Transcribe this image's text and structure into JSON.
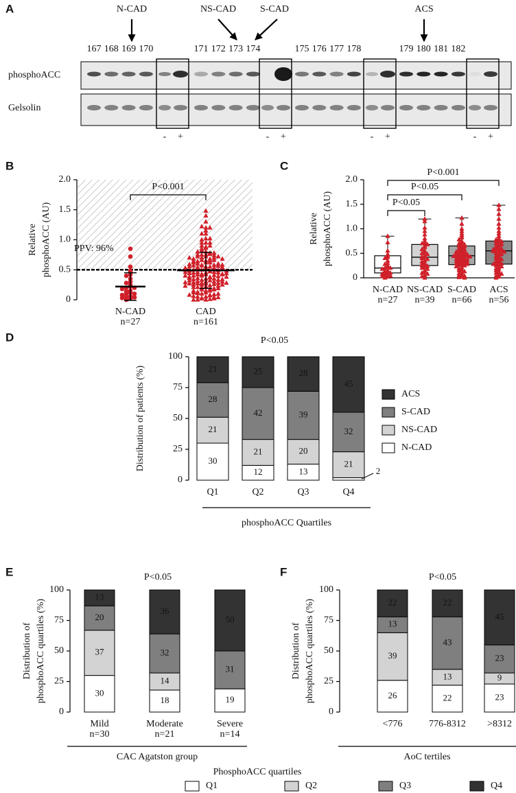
{
  "blot": {
    "panel": "A",
    "arrows": [
      "N-CAD",
      "NS-CAD",
      "S-CAD",
      "ACS"
    ],
    "lanes": [
      "167",
      "168",
      "169",
      "170",
      "171",
      "172",
      "173",
      "174",
      "175",
      "176",
      "177",
      "178",
      "179",
      "180",
      "181",
      "182"
    ],
    "rows": [
      "phosphoACC",
      "Gelsolin"
    ],
    "controls": [
      "-",
      "+",
      "-",
      "+",
      "-",
      "+",
      "-",
      "+"
    ]
  },
  "chart_data": [
    {
      "type": "dotplot",
      "panel": "B",
      "y_label": [
        "Relative",
        "phosphoACC (AU)"
      ],
      "categories": [
        "N-CAD",
        "CAD"
      ],
      "n_labels": [
        "n=27",
        "n=161"
      ],
      "markers": [
        "circle",
        "triangle"
      ],
      "color": "#d0202a",
      "values": [
        [
          0.85,
          0.72,
          0.55,
          0.48,
          0.45,
          0.42,
          0.4,
          0.35,
          0.3,
          0.28,
          0.25,
          0.22,
          0.2,
          0.2,
          0.18,
          0.15,
          0.14,
          0.12,
          0.1,
          0.1,
          0.08,
          0.06,
          0.05,
          0.04,
          0.03,
          0.02,
          0.0
        ],
        [
          1.2,
          1.15,
          1.02,
          0.95,
          0.88,
          0.8,
          0.75,
          0.72,
          0.7,
          0.68,
          0.65,
          0.62,
          0.58,
          0.55,
          0.52,
          0.5,
          0.48,
          0.45,
          0.43,
          0.42,
          0.4,
          0.38,
          0.35,
          0.33,
          0.3,
          0.28,
          0.27,
          0.25,
          0.24,
          0.22,
          0.2,
          0.18,
          0.15,
          0.12,
          0.1,
          0.08,
          0.05,
          0.03,
          0.0,
          1.22,
          1.1,
          1.0,
          0.95,
          0.9,
          0.86,
          0.82,
          0.78,
          0.75,
          0.72,
          0.7,
          0.68,
          0.66,
          0.65,
          0.64,
          0.62,
          0.6,
          0.58,
          0.57,
          0.55,
          0.54,
          0.53,
          0.52,
          0.51,
          0.5,
          0.49,
          0.48,
          0.47,
          0.46,
          0.46,
          0.45,
          0.45,
          0.44,
          0.43,
          0.42,
          0.41,
          0.4,
          0.39,
          0.38,
          0.37,
          0.36,
          0.35,
          0.34,
          0.33,
          0.32,
          0.31,
          0.3,
          0.29,
          0.28,
          0.27,
          0.26,
          0.25,
          0.23,
          0.21,
          0.19,
          0.17,
          0.15,
          0.13,
          0.11,
          0.09,
          0.07,
          0.05,
          0.04,
          0.02,
          0.01,
          0.0,
          1.48,
          1.4,
          1.3,
          1.2,
          1.1,
          1.02,
          0.95,
          0.9,
          0.85,
          0.8,
          0.78,
          0.76,
          0.75,
          0.74,
          0.72,
          0.7,
          0.68,
          0.66,
          0.64,
          0.62,
          0.6,
          0.59,
          0.58,
          0.57,
          0.56,
          0.55,
          0.54,
          0.53,
          0.52,
          0.5,
          0.48,
          0.46,
          0.44,
          0.42,
          0.4,
          0.38,
          0.36,
          0.34,
          0.32,
          0.3,
          0.29,
          0.28,
          0.27,
          0.25,
          0.23,
          0.21,
          0.19,
          0.17,
          0.15,
          0.12,
          0.1,
          0.08,
          0.06,
          0.04,
          0.02,
          0.0
        ]
      ],
      "means": [
        0.22,
        0.49
      ],
      "errors": [
        0.23,
        0.3
      ],
      "threshold": 0.5,
      "annotations": [
        "P<0.001"
      ],
      "ppv_label": "PPV: 96%",
      "ylim": [
        0,
        2
      ],
      "yticks": [
        0,
        0.5,
        {
          "value": 1,
          "label": "1.0"
        },
        1.5,
        {
          "value": 2,
          "label": "2.0"
        }
      ]
    },
    {
      "type": "box",
      "panel": "C",
      "y_label": [
        "Relative",
        "phosphoACC (AU)"
      ],
      "categories": [
        "N-CAD",
        "NS-CAD",
        "S-CAD",
        "ACS"
      ],
      "n_labels": [
        "n=27",
        "n=39",
        "n=66",
        "n=56"
      ],
      "min": [
        0,
        0,
        0,
        0
      ],
      "q1": [
        0.1,
        0.25,
        0.27,
        0.28
      ],
      "median": [
        0.2,
        0.42,
        0.45,
        0.55
      ],
      "q3": [
        0.45,
        0.68,
        0.65,
        0.75
      ],
      "max": [
        0.85,
        1.2,
        1.22,
        1.48
      ],
      "box_colors": [
        "#ffffff",
        "#d3d3d3",
        "#a8a8a8",
        "#8a8a8a"
      ],
      "point_color": "#d0202a",
      "points": [
        [
          0.85,
          0.72,
          0.55,
          0.48,
          0.45,
          0.42,
          0.4,
          0.35,
          0.3,
          0.28,
          0.25,
          0.22,
          0.2,
          0.2,
          0.18,
          0.15,
          0.14,
          0.12,
          0.1,
          0.1,
          0.08,
          0.06,
          0.05,
          0.04,
          0.03,
          0.02,
          0.0
        ],
        [
          1.2,
          1.15,
          1.02,
          0.95,
          0.88,
          0.8,
          0.75,
          0.72,
          0.7,
          0.68,
          0.65,
          0.62,
          0.58,
          0.55,
          0.52,
          0.5,
          0.48,
          0.45,
          0.43,
          0.42,
          0.4,
          0.38,
          0.35,
          0.33,
          0.3,
          0.28,
          0.27,
          0.25,
          0.24,
          0.22,
          0.2,
          0.18,
          0.15,
          0.12,
          0.1,
          0.08,
          0.05,
          0.03,
          0.0
        ],
        [
          1.22,
          1.1,
          1.0,
          0.95,
          0.9,
          0.86,
          0.82,
          0.78,
          0.75,
          0.72,
          0.7,
          0.68,
          0.66,
          0.65,
          0.64,
          0.62,
          0.6,
          0.58,
          0.57,
          0.55,
          0.54,
          0.53,
          0.52,
          0.51,
          0.5,
          0.49,
          0.48,
          0.47,
          0.46,
          0.46,
          0.45,
          0.45,
          0.44,
          0.43,
          0.42,
          0.41,
          0.4,
          0.39,
          0.38,
          0.37,
          0.36,
          0.35,
          0.34,
          0.33,
          0.32,
          0.31,
          0.3,
          0.29,
          0.28,
          0.27,
          0.26,
          0.25,
          0.23,
          0.21,
          0.19,
          0.17,
          0.15,
          0.13,
          0.11,
          0.09,
          0.07,
          0.05,
          0.04,
          0.02,
          0.01,
          0.0
        ],
        [
          1.48,
          1.4,
          1.3,
          1.2,
          1.1,
          1.02,
          0.95,
          0.9,
          0.85,
          0.8,
          0.78,
          0.76,
          0.75,
          0.74,
          0.72,
          0.7,
          0.68,
          0.66,
          0.64,
          0.62,
          0.6,
          0.59,
          0.58,
          0.57,
          0.56,
          0.55,
          0.54,
          0.53,
          0.52,
          0.5,
          0.48,
          0.46,
          0.44,
          0.42,
          0.4,
          0.38,
          0.36,
          0.34,
          0.32,
          0.3,
          0.29,
          0.28,
          0.27,
          0.25,
          0.23,
          0.21,
          0.19,
          0.17,
          0.15,
          0.12,
          0.1,
          0.08,
          0.06,
          0.04,
          0.02,
          0.0
        ]
      ],
      "annotations": [
        "P<0.05",
        "P<0.05",
        "P<0.001"
      ],
      "ylim": [
        0,
        2
      ],
      "yticks": [
        0,
        0.5,
        {
          "value": 1,
          "label": "1.0"
        },
        1.5,
        {
          "value": 2,
          "label": "2.0"
        }
      ]
    },
    {
      "type": "bar",
      "stacked": true,
      "panel": "D",
      "title": "P<0.05",
      "y_label": [
        "Distribution of patients (%)"
      ],
      "x_label": "phosphoACC Quartiles",
      "categories": [
        "Q1",
        "Q2",
        "Q3",
        "Q4"
      ],
      "series": [
        {
          "name": "N-CAD",
          "color": "#ffffff",
          "values": [
            30,
            12,
            13,
            2
          ]
        },
        {
          "name": "NS-CAD",
          "color": "#d3d3d3",
          "values": [
            21,
            21,
            20,
            21
          ]
        },
        {
          "name": "S-CAD",
          "color": "#7f7f7f",
          "values": [
            28,
            42,
            39,
            32
          ]
        },
        {
          "name": "ACS",
          "color": "#333333",
          "values": [
            21,
            25,
            28,
            45
          ]
        }
      ],
      "legend": "right",
      "ylim": [
        0,
        100
      ],
      "yticks": [
        0,
        25,
        50,
        75,
        100
      ]
    },
    {
      "type": "bar",
      "stacked": true,
      "panel": "E",
      "title": "P<0.05",
      "y_label": [
        "Distribution of",
        "phosphoACC quartiles (%)"
      ],
      "x_label": "CAC Agatston group",
      "categories": [
        "Mild",
        "Moderate",
        "Severe"
      ],
      "n_labels": [
        "n=30",
        "n=21",
        "n=14"
      ],
      "series": [
        {
          "name": "Q1",
          "color": "#ffffff",
          "values": [
            30,
            18,
            19
          ]
        },
        {
          "name": "Q2",
          "color": "#d3d3d3",
          "values": [
            37,
            14,
            0
          ]
        },
        {
          "name": "Q3",
          "color": "#7f7f7f",
          "values": [
            20,
            32,
            31
          ]
        },
        {
          "name": "Q4",
          "color": "#333333",
          "values": [
            13,
            36,
            50
          ]
        }
      ],
      "legend": "bottom",
      "legend_title": "PhosphoACC quartiles",
      "ylim": [
        0,
        100
      ],
      "yticks": [
        0,
        25,
        50,
        75,
        100
      ]
    },
    {
      "type": "bar",
      "stacked": true,
      "panel": "F",
      "title": "P<0.05",
      "y_label": [
        "Distribution of",
        "phosphoACC quartiles (%)"
      ],
      "x_label": "AoC tertiles",
      "categories": [
        "<776",
        "776-8312",
        ">8312"
      ],
      "series": [
        {
          "color": "#ffffff",
          "values": [
            26,
            22,
            23
          ]
        },
        {
          "color": "#d3d3d3",
          "values": [
            39,
            13,
            9
          ]
        },
        {
          "color": "#7f7f7f",
          "values": [
            13,
            43,
            23
          ]
        },
        {
          "color": "#333333",
          "values": [
            22,
            22,
            45
          ]
        }
      ],
      "ylim": [
        0,
        100
      ],
      "yticks": [
        0,
        25,
        50,
        75,
        100
      ]
    }
  ]
}
